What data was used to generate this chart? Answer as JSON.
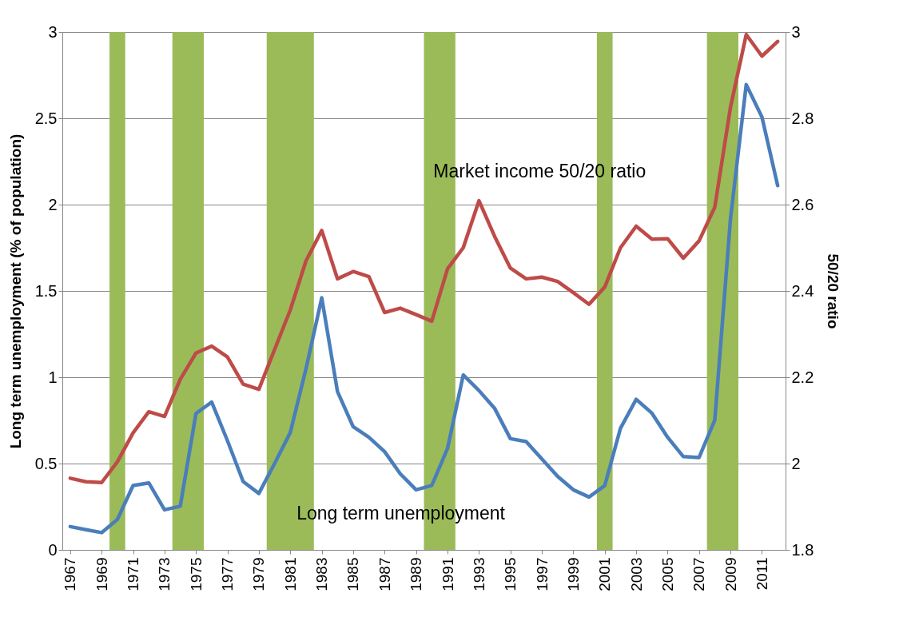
{
  "chart_data": {
    "type": "line",
    "ylabel": "Long term unemployment (% of population)",
    "y2label": "50/20 ratio",
    "x": [
      1967,
      1968,
      1969,
      1970,
      1971,
      1972,
      1973,
      1974,
      1975,
      1976,
      1977,
      1978,
      1979,
      1980,
      1981,
      1982,
      1983,
      1984,
      1985,
      1986,
      1987,
      1988,
      1989,
      1990,
      1991,
      1992,
      1993,
      1994,
      1995,
      1996,
      1997,
      1998,
      1999,
      2000,
      2001,
      2002,
      2003,
      2004,
      2005,
      2006,
      2007,
      2008,
      2009,
      2010,
      2011,
      2012
    ],
    "series": [
      {
        "name": "Long term unemployment",
        "color": "#4a7ebb",
        "values": [
          0.135,
          0.117,
          0.1,
          0.176,
          0.373,
          0.388,
          0.232,
          0.253,
          0.79,
          0.856,
          0.633,
          0.396,
          0.327,
          0.5,
          0.68,
          1.05,
          1.46,
          0.917,
          0.713,
          0.652,
          0.569,
          0.44,
          0.348,
          0.373,
          0.587,
          1.013,
          0.923,
          0.819,
          0.644,
          0.627,
          0.527,
          0.426,
          0.348,
          0.306,
          0.372,
          0.704,
          0.872,
          0.792,
          0.652,
          0.54,
          0.535,
          0.752,
          1.92,
          2.695,
          2.507,
          2.11
        ]
      },
      {
        "name": "Market income 50/20 ratio",
        "color": "#be4b48",
        "axis": "y2",
        "values": [
          1.966,
          1.958,
          1.956,
          2.004,
          2.071,
          2.12,
          2.109,
          2.195,
          2.256,
          2.272,
          2.247,
          2.184,
          2.172,
          2.264,
          2.356,
          2.47,
          2.54,
          2.428,
          2.445,
          2.433,
          2.35,
          2.36,
          2.345,
          2.33,
          2.451,
          2.5,
          2.609,
          2.526,
          2.453,
          2.428,
          2.432,
          2.422,
          2.396,
          2.369,
          2.409,
          2.5,
          2.55,
          2.52,
          2.521,
          2.476,
          2.516,
          2.594,
          2.826,
          2.994,
          2.944,
          2.978
        ]
      }
    ],
    "xlim": [
      1966.5,
      2012.5
    ],
    "xticks": [
      1967,
      1969,
      1971,
      1973,
      1975,
      1977,
      1979,
      1981,
      1983,
      1985,
      1987,
      1989,
      1991,
      1993,
      1995,
      1997,
      1999,
      2001,
      2003,
      2005,
      2007,
      2009,
      2011
    ],
    "ylim": [
      0,
      3
    ],
    "yticks": [
      0,
      0.5,
      1,
      1.5,
      2,
      2.5,
      3
    ],
    "y2lim": [
      1.8,
      3
    ],
    "y2ticks": [
      1.8,
      2,
      2.2,
      2.4,
      2.6,
      2.8,
      3
    ],
    "bands": [
      {
        "axis": "x",
        "from": 1969.5,
        "to": 1970.5,
        "color": "#9bbb59"
      },
      {
        "axis": "x",
        "from": 1973.5,
        "to": 1975.5,
        "color": "#9bbb59"
      },
      {
        "axis": "x",
        "from": 1979.5,
        "to": 1982.5,
        "color": "#9bbb59"
      },
      {
        "axis": "x",
        "from": 1989.5,
        "to": 1991.5,
        "color": "#9bbb59"
      },
      {
        "axis": "x",
        "from": 2000.5,
        "to": 2001.5,
        "color": "#9bbb59"
      },
      {
        "axis": "x",
        "from": 2007.5,
        "to": 2009.5,
        "color": "#9bbb59"
      }
    ],
    "grid": "y",
    "legend": false,
    "line_style": "solid",
    "marker": "none"
  }
}
